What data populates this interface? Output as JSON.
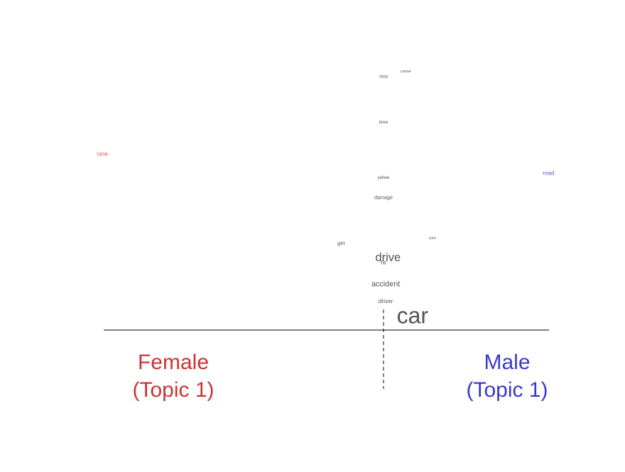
{
  "chart_data": {
    "type": "scatter",
    "title": "",
    "xlabel": "",
    "ylabel": "",
    "xlim": [
      -1,
      1
    ],
    "ylim": [
      0,
      1
    ],
    "axis_line": "horizontal baseline with dashed vertical center divider",
    "left_label": {
      "line1": "Female",
      "line2": "(Topic 1)",
      "color": "#cc3333"
    },
    "right_label": {
      "line1": "Male",
      "line2": "(Topic 1)",
      "color": "#3a3acc"
    },
    "colors": {
      "female": "#e8604c",
      "male": "#5a5ab8",
      "neutral": "#555555"
    },
    "words": [
      {
        "text": "car",
        "x": 0.13,
        "y": 0.06,
        "weight": 1.0,
        "group": "neutral"
      },
      {
        "text": "drive",
        "x": 0.02,
        "y": 0.3,
        "weight": 0.55,
        "group": "neutral"
      },
      {
        "text": "accident",
        "x": 0.01,
        "y": 0.19,
        "weight": 0.35,
        "group": "neutral"
      },
      {
        "text": "driver",
        "x": 0.01,
        "y": 0.12,
        "weight": 0.25,
        "group": "neutral"
      },
      {
        "text": "hit",
        "x": 0.0,
        "y": 0.28,
        "weight": 0.2,
        "group": "neutral"
      },
      {
        "text": "get",
        "x": -0.19,
        "y": 0.36,
        "weight": 0.22,
        "group": "neutral"
      },
      {
        "text": "damage",
        "x": 0.0,
        "y": 0.55,
        "weight": 0.2,
        "group": "neutral"
      },
      {
        "text": "yellow",
        "x": 0.0,
        "y": 0.63,
        "weight": 0.14,
        "group": "neutral"
      },
      {
        "text": "time",
        "x": 0.0,
        "y": 0.86,
        "weight": 0.17,
        "group": "neutral"
      },
      {
        "text": "stop",
        "x": 0.0,
        "y": 1.05,
        "weight": 0.16,
        "group": "neutral"
      },
      {
        "text": "cause",
        "x": 0.1,
        "y": 1.07,
        "weight": 0.12,
        "group": "neutral"
      },
      {
        "text": "turn",
        "x": 0.22,
        "y": 0.38,
        "weight": 0.12,
        "group": "neutral"
      },
      {
        "text": "lane",
        "x": -1.26,
        "y": 0.73,
        "weight": 0.24,
        "group": "female"
      },
      {
        "text": "road",
        "x": 0.74,
        "y": 0.65,
        "weight": 0.24,
        "group": "male"
      }
    ]
  }
}
